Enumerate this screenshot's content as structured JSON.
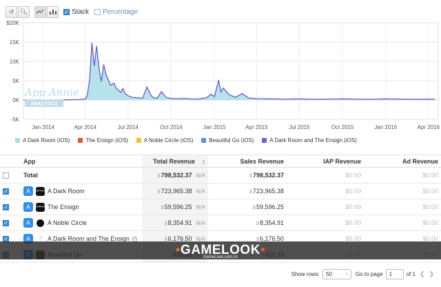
{
  "toolbar": {
    "undo_icon": "undo-icon",
    "zoom_icon": "zoom-icon",
    "line_icon": "line-chart-icon",
    "bar_icon": "bar-chart-icon",
    "stack_label": "Stack",
    "stack_checked": true,
    "percentage_label": "Percentage",
    "percentage_checked": false
  },
  "chart_data": {
    "type": "area",
    "stacked": true,
    "ylim": [
      -5000,
      20000
    ],
    "y_ticks": [
      "$20K",
      "15K",
      "10K",
      "5K",
      "0K",
      "-5K"
    ],
    "x_ticks": [
      "Jan 2014",
      "Apr 2014",
      "Jul 2014",
      "Oct 2014",
      "Jan 2015",
      "Apr 2015",
      "Jul 2015",
      "Oct 2015",
      "Jan 2016",
      "Apr 2016"
    ],
    "watermark": "App Annie",
    "watermark_sub": "ANALYTICS",
    "grid": true,
    "series": [
      {
        "name": "A Dark Room (iOS)",
        "color": "#a9dde8",
        "line_color": "#6a5acd",
        "x": [
          "2013-11-20",
          "2014-01-01",
          "2014-02-15",
          "2014-03-20",
          "2014-04-01",
          "2014-04-05",
          "2014-04-10",
          "2014-04-15",
          "2014-04-20",
          "2014-04-25",
          "2014-05-01",
          "2014-05-05",
          "2014-05-10",
          "2014-05-15",
          "2014-05-20",
          "2014-05-25",
          "2014-06-01",
          "2014-06-05",
          "2014-06-10",
          "2014-06-15",
          "2014-06-20",
          "2014-06-25",
          "2014-07-01",
          "2014-07-10",
          "2014-07-20",
          "2014-08-01",
          "2014-08-10",
          "2014-08-20",
          "2014-08-25",
          "2014-09-01",
          "2014-09-10",
          "2014-09-20",
          "2014-10-01",
          "2014-10-15",
          "2014-11-01",
          "2014-11-15",
          "2014-12-01",
          "2014-12-15",
          "2014-12-25",
          "2015-01-01",
          "2015-01-10",
          "2015-01-15",
          "2015-01-20",
          "2015-02-01",
          "2015-02-15",
          "2015-03-01",
          "2015-03-15",
          "2015-04-01",
          "2015-05-01",
          "2015-06-01",
          "2015-07-01",
          "2015-08-01",
          "2015-09-01",
          "2015-10-01",
          "2015-11-01",
          "2015-12-01",
          "2016-01-01",
          "2016-02-01",
          "2016-03-01",
          "2016-04-15"
        ],
        "y": [
          0,
          50,
          60,
          120,
          300,
          1200,
          5200,
          14800,
          8800,
          14000,
          7500,
          4800,
          9200,
          6600,
          5200,
          3800,
          4400,
          3200,
          2600,
          2000,
          3000,
          1600,
          1100,
          700,
          600,
          500,
          3400,
          1000,
          600,
          450,
          2200,
          700,
          400,
          350,
          400,
          250,
          300,
          600,
          1500,
          900,
          5200,
          2100,
          3100,
          1400,
          700,
          1700,
          500,
          350,
          300,
          250,
          300,
          200,
          250,
          300,
          250,
          200,
          300,
          250,
          200,
          250
        ]
      },
      {
        "name": "The Ensign (iOS)",
        "color": "#e8532b"
      },
      {
        "name": "A Noble Circle (iOS)",
        "color": "#f5c02a"
      },
      {
        "name": "Beautiful Go (iOS)",
        "color": "#5b8fd6"
      },
      {
        "name": "A Dark Room and The Ensign (iOS)",
        "color": "#7d5bd1"
      }
    ]
  },
  "table": {
    "headers": {
      "app": "App",
      "total_revenue": "Total Revenue",
      "sales_revenue": "Sales Revenue",
      "iap_revenue": "IAP Revenue",
      "ad_revenue": "Ad Revenue"
    },
    "sort_icon": "sort-icon",
    "total_row": {
      "label": "Total",
      "currency": "$",
      "total_revenue": "798,532.37",
      "na": "N/A",
      "sales_revenue": "798,532.37",
      "iap_revenue": "$0.00",
      "ad_revenue": "$0.00"
    },
    "rows": [
      {
        "name": "A Dark Room",
        "icon": "a-dark-room-app-icon",
        "icon_text": "DARK ROOM",
        "checked": true,
        "currency": "$",
        "total_revenue": "723,965.38",
        "na": "N/A",
        "sales_revenue": "723,965.38",
        "iap_revenue": "$0.00",
        "ad_revenue": "$0.00"
      },
      {
        "name": "The Ensign",
        "icon": "the-ensign-app-icon",
        "icon_text": "ENSIGN",
        "checked": true,
        "currency": "$",
        "total_revenue": "59,596.25",
        "na": "N/A",
        "sales_revenue": "59,596.25",
        "iap_revenue": "$0.00",
        "ad_revenue": "$0.00"
      },
      {
        "name": "A Noble Circle",
        "icon": "a-noble-circle-app-icon",
        "icon_text": "",
        "checked": true,
        "currency": "$",
        "total_revenue": "8,354.91",
        "na": "N/A",
        "sales_revenue": "8,354.91",
        "iap_revenue": "$0.00",
        "ad_revenue": "$0.00"
      },
      {
        "name": "A Dark Room and The Ensign",
        "icon": "bundle-app-icon",
        "icon_text": "?",
        "checked": true,
        "currency": "$",
        "total_revenue": "6,176.50",
        "na": "N/A",
        "sales_revenue": "6,176.50",
        "iap_revenue": "$0.00",
        "ad_revenue": "$0.00"
      },
      {
        "name": "Beautiful Go",
        "icon": "beautiful-go-app-icon",
        "icon_text": "",
        "checked": true,
        "currency": "$",
        "total_revenue": "439.33",
        "na": "N/A",
        "sales_revenue": "439.33",
        "iap_revenue": "$0.00",
        "ad_revenue": "$0.00"
      }
    ]
  },
  "overlay": {
    "logo": "GAMELOOK",
    "sub": "GameLook.com.cn"
  },
  "pager": {
    "show_rows_label": "Show rows:",
    "rows_value": "50",
    "go_to_page_label": "Go to page",
    "page_value": "1",
    "of_label": "of 1"
  }
}
